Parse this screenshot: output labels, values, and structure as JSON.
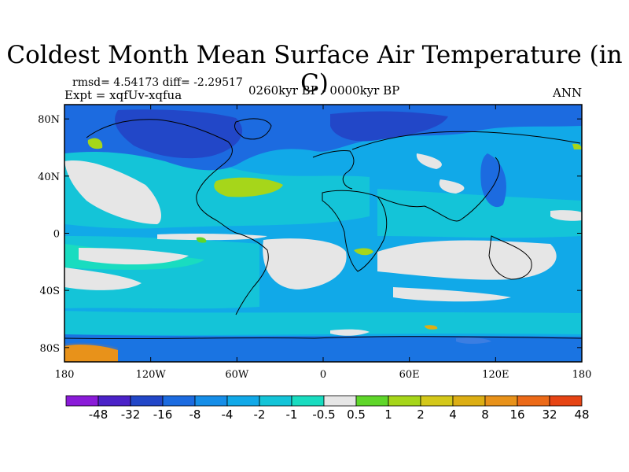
{
  "title": "Coldest Month Mean Surface Air Temperature (in C)",
  "stats_line": "rmsd= 4.54173 diff= -2.29517",
  "experiment_line": "Expt = xqfUv-xqfua",
  "period": "0260kyr BP - 0000kyr BP",
  "season": "ANN",
  "map": {
    "projection": "cylindrical equidistant",
    "lon_range": [
      -180,
      180
    ],
    "lat_range": [
      -90,
      90
    ],
    "lat_ticks": [
      {
        "value": 80,
        "label": "80N"
      },
      {
        "value": 40,
        "label": "40N"
      },
      {
        "value": 0,
        "label": "0"
      },
      {
        "value": -40,
        "label": "40S"
      },
      {
        "value": -80,
        "label": "80S"
      }
    ],
    "lon_ticks": [
      {
        "value": -180,
        "label": "180"
      },
      {
        "value": -120,
        "label": "120W"
      },
      {
        "value": -60,
        "label": "60W"
      },
      {
        "value": 0,
        "label": "0"
      },
      {
        "value": 60,
        "label": "60E"
      },
      {
        "value": 120,
        "label": "120E"
      },
      {
        "value": 180,
        "label": "180"
      }
    ]
  },
  "colorbar": {
    "colors": [
      "#8a1bd8",
      "#4b22c8",
      "#2247c8",
      "#1c6be0",
      "#168ee8",
      "#11a9e8",
      "#14c4d8",
      "#19dcc0",
      "#e6e6e6",
      "#5fd62a",
      "#a6d61a",
      "#d4c81a",
      "#dcae14",
      "#e8921a",
      "#ec6a18",
      "#e64414"
    ],
    "labels": [
      "-48",
      "-32",
      "-16",
      "-8",
      "-4",
      "-2",
      "-1",
      "-0.5",
      "0.5",
      "1",
      "2",
      "4",
      "8",
      "16",
      "32",
      "48"
    ]
  }
}
